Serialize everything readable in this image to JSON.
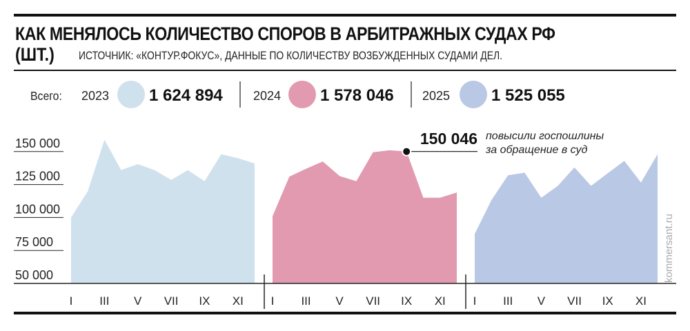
{
  "header": {
    "title": "КАК МЕНЯЛОСЬ КОЛИЧЕСТВО СПОРОВ В АРБИТРАЖНЫХ СУДАХ РФ",
    "unit": "(ШТ.)",
    "source": "ИСТОЧНИК: «КОНТУР.ФОКУС», ДАННЫЕ ПО КОЛИЧЕСТВУ ВОЗБУЖДЕННЫХ СУДАМИ ДЕЛ."
  },
  "totals": {
    "label": "Всего:",
    "items": [
      {
        "year": "2023",
        "total": "1 624 894",
        "color": "#d0e1ee"
      },
      {
        "year": "2024",
        "total": "1 578 046",
        "color": "#e29ab0"
      },
      {
        "year": "2025",
        "total": "1 525 055",
        "color": "#b9c8e5"
      }
    ]
  },
  "watermark": "kommersant.ru",
  "chart_data": {
    "type": "area",
    "ylim": [
      50000,
      160000
    ],
    "yticks": [
      50000,
      75000,
      100000,
      125000,
      150000
    ],
    "ytick_labels": [
      "50 000",
      "75 000",
      "100 000",
      "125 000",
      "150 000"
    ],
    "xtick_labels": [
      "I",
      "III",
      "V",
      "VII",
      "IX",
      "XI"
    ],
    "months": [
      "I",
      "II",
      "III",
      "IV",
      "V",
      "VI",
      "VII",
      "VIII",
      "IX",
      "X",
      "XI",
      "XII"
    ],
    "series": [
      {
        "name": "2023",
        "color": "#d0e1ee",
        "values": [
          100000,
          120000,
          159000,
          136000,
          140500,
          136000,
          128500,
          136000,
          127500,
          148000,
          145000,
          141000
        ]
      },
      {
        "name": "2024",
        "color": "#e29ab0",
        "values": [
          101000,
          131000,
          137000,
          142500,
          131500,
          127500,
          149500,
          151000,
          150046,
          115000,
          115000,
          119000
        ]
      },
      {
        "name": "2025",
        "color": "#b9c8e5",
        "values": [
          87500,
          113000,
          132000,
          134000,
          115000,
          124000,
          138000,
          124000,
          133500,
          143000,
          126500,
          148000
        ]
      }
    ],
    "annotation": {
      "series": "2024",
      "month": "IX",
      "value_label": "150 046",
      "text_line1": "повысили госпошлины",
      "text_line2": "за обращение в суд"
    }
  }
}
